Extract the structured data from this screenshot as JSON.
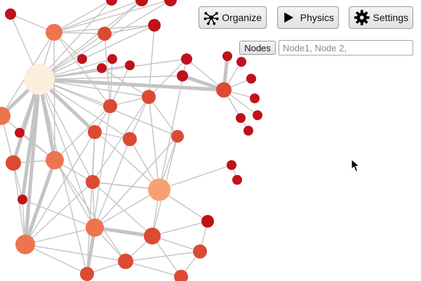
{
  "toolbar": {
    "organize_label": "Organize",
    "physics_label": "Physics",
    "settings_label": "Settings"
  },
  "node_filter": {
    "button_label": "Nodes",
    "placeholder": "Node1, Node 2,",
    "value": ""
  },
  "colors": {
    "edge": "#c4c4c4",
    "node_dark_red": "#c0121a",
    "node_red": "#dc4a33",
    "node_orange": "#ec7550",
    "node_light_orange": "#f7a072",
    "node_cream": "#fbefdb",
    "button_bg": "#e8e8e8"
  },
  "icons": [
    "organize-network-icon",
    "play-icon",
    "gear-icon",
    "mouse-cursor-icon"
  ]
}
